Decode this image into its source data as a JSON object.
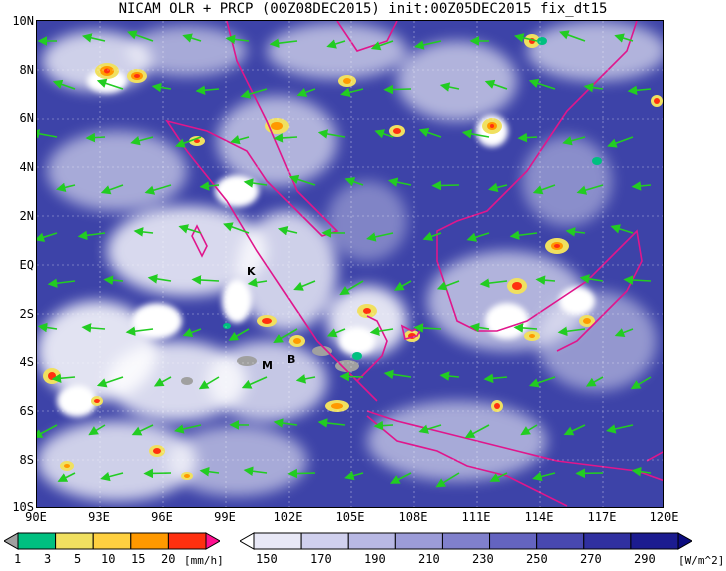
{
  "title": "NICAM OLR + PRCP (00Z08DEC2015) init:00Z05DEC2015 fix_dt15",
  "lat_labels": [
    "10N",
    "8N",
    "6N",
    "4N",
    "2N",
    "EQ",
    "2S",
    "4S",
    "6S",
    "8S",
    "10S"
  ],
  "lon_labels": [
    "90E",
    "93E",
    "96E",
    "99E",
    "102E",
    "105E",
    "108E",
    "111E",
    "114E",
    "117E",
    "120E"
  ],
  "markers": [
    "K",
    "M",
    "B"
  ],
  "precip_bar": {
    "labels": [
      "1",
      "3",
      "5",
      "10",
      "15",
      "20"
    ],
    "unit": "[mm/h]",
    "colors": [
      "#a0a0a0",
      "#00c080",
      "#f0e060",
      "#ffd040",
      "#ff9900",
      "#ff3010",
      "#ff1090"
    ]
  },
  "olr_bar": {
    "labels": [
      "150",
      "170",
      "190",
      "210",
      "230",
      "250",
      "270",
      "290"
    ],
    "unit": "[W/m^2]",
    "colors": [
      "#ffffff",
      "#e8e8f6",
      "#d0d0ee",
      "#b8b8e4",
      "#9c9cd8",
      "#8080cc",
      "#6464c0",
      "#4848b0",
      "#3030a0",
      "#1c1c90",
      "#0c0c80"
    ]
  },
  "colors": {
    "ocean": "#4a4fae",
    "cloud": "#ffffff",
    "coast": "#e0168c",
    "wind": "#22cc22"
  }
}
